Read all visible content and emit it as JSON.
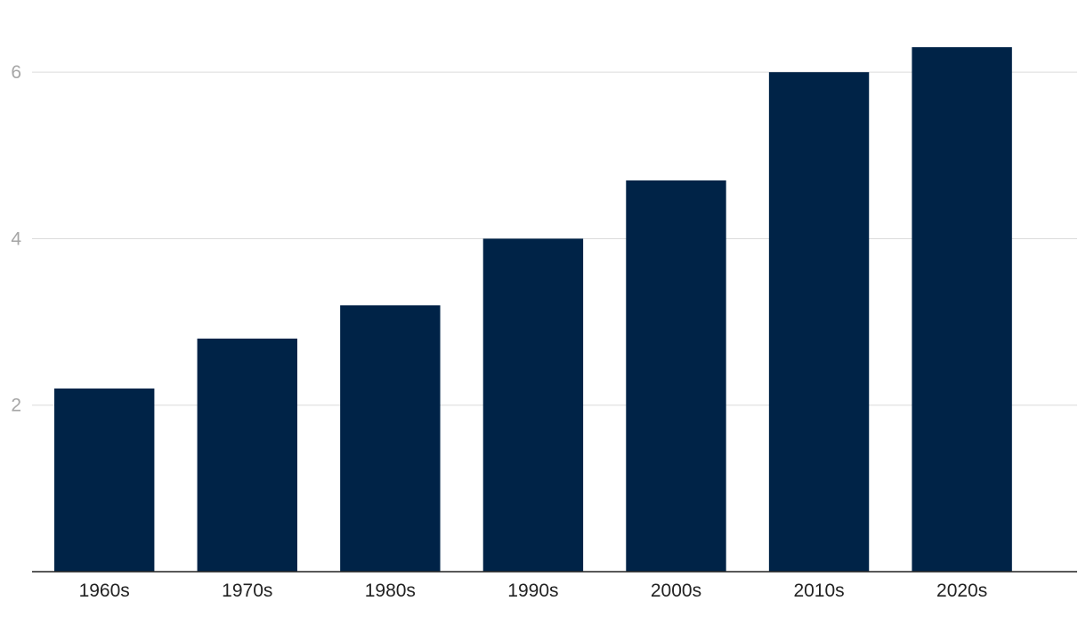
{
  "chart_data": {
    "type": "bar",
    "title": "",
    "xlabel": "",
    "ylabel": "",
    "categories": [
      "1960s",
      "1970s",
      "1980s",
      "1990s",
      "2000s",
      "2010s",
      "2020s"
    ],
    "values": [
      2.2,
      2.8,
      3.2,
      4.0,
      4.7,
      6.0,
      6.3
    ],
    "ylim": [
      0,
      6.6
    ],
    "yticks": [
      2,
      4,
      6
    ],
    "ytick_labels": [
      "2",
      "4",
      "6"
    ],
    "grid": true,
    "legend": "none",
    "colors": {
      "bar": "#002347",
      "grid": "#dcdcdc",
      "baseline": "#222222",
      "ytick_text": "#a6a6a6",
      "xtick_text": "#222222"
    }
  }
}
